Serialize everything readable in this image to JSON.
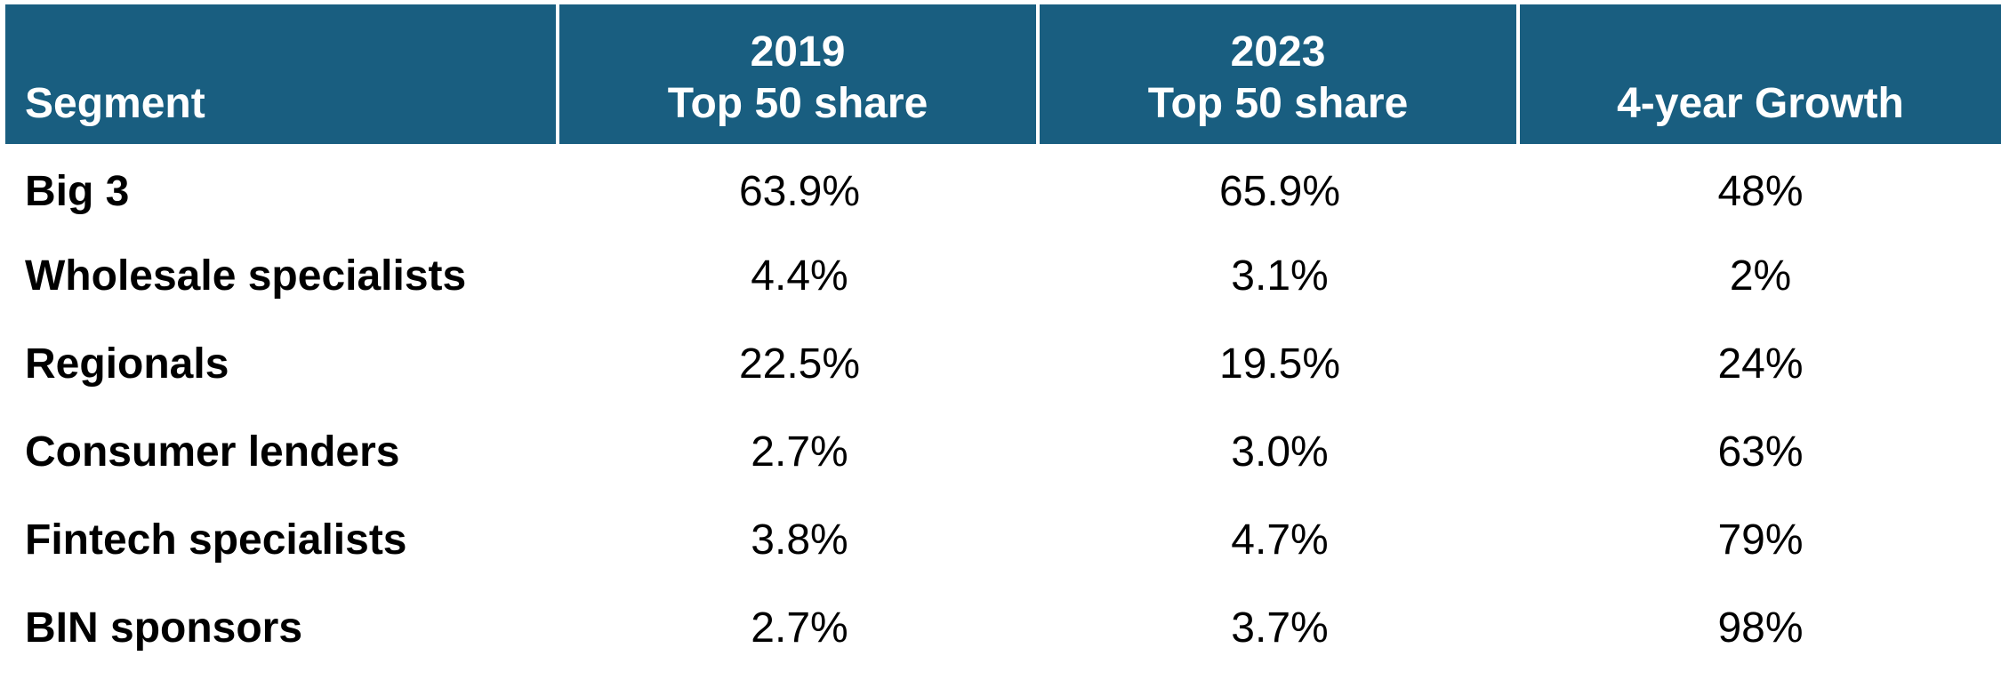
{
  "chart_data": {
    "type": "table",
    "columns": [
      {
        "lines": [
          "Segment"
        ]
      },
      {
        "lines": [
          "2019",
          "Top 50 share"
        ]
      },
      {
        "lines": [
          "2023",
          "Top 50 share"
        ]
      },
      {
        "lines": [
          "4-year Growth"
        ]
      }
    ],
    "rows": [
      {
        "segment": "Big 3",
        "share_2019": "63.9%",
        "share_2023": "65.9%",
        "growth": "48%"
      },
      {
        "segment": "Wholesale specialists",
        "share_2019": "4.4%",
        "share_2023": "3.1%",
        "growth": "2%"
      },
      {
        "segment": "Regionals",
        "share_2019": "22.5%",
        "share_2023": "19.5%",
        "growth": "24%"
      },
      {
        "segment": "Consumer lenders",
        "share_2019": "2.7%",
        "share_2023": "3.0%",
        "growth": "63%"
      },
      {
        "segment": "Fintech specialists",
        "share_2019": "3.8%",
        "share_2023": "4.7%",
        "growth": "79%"
      },
      {
        "segment": "BIN sponsors",
        "share_2019": "2.7%",
        "share_2023": "3.7%",
        "growth": "98%"
      }
    ]
  },
  "colors": {
    "header_background": "#195e80",
    "header_text": "#ffffff",
    "body_text": "#000000",
    "background": "#ffffff"
  }
}
